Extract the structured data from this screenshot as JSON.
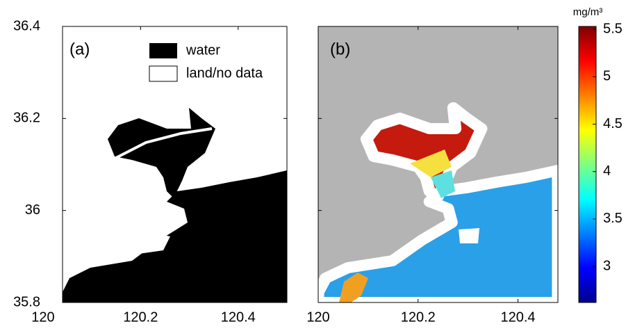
{
  "panels": [
    {
      "label": "(a)",
      "legend": [
        "water",
        "land/no data"
      ],
      "xlim": [
        120.04,
        120.5
      ],
      "ylim": [
        35.8,
        36.4
      ],
      "xticks": [
        120,
        120.2,
        120.4
      ],
      "yticks": [
        35.8,
        36,
        36.2,
        36.4
      ]
    },
    {
      "label": "(b)",
      "xlim": [
        120,
        120.48
      ],
      "ylim": [
        35.8,
        36.4
      ],
      "xticks": [
        120,
        120.2,
        120.4
      ],
      "yticks": [
        35.8,
        36,
        36.2,
        36.4
      ]
    }
  ],
  "colorbar": {
    "unit": "mg/m³",
    "lim": [
      2.62,
      5.53
    ],
    "ticks": [
      3,
      3.5,
      4,
      4.5,
      5,
      5.5
    ]
  }
}
